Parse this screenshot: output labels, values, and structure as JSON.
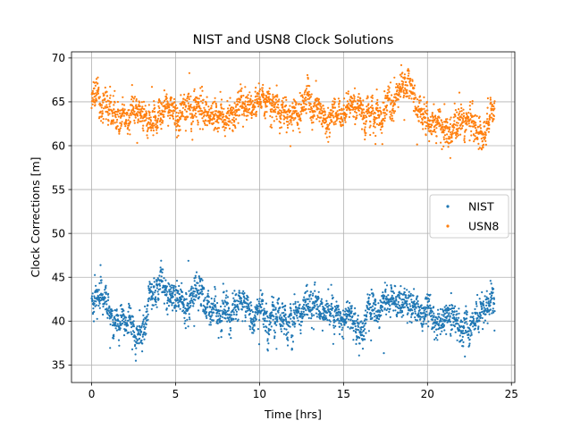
{
  "chart_data": {
    "type": "scatter",
    "title": "NIST and USN8 Clock Solutions",
    "xlabel": "Time [hrs]",
    "ylabel": "Clock Corrections [m]",
    "xlim": [
      -1.2,
      25.2
    ],
    "ylim": [
      33.0,
      70.7
    ],
    "xticks": [
      0,
      5,
      10,
      15,
      20,
      25
    ],
    "yticks": [
      35,
      40,
      45,
      50,
      55,
      60,
      65,
      70
    ],
    "grid": true,
    "legend_position": "center-right",
    "point_spacing_hours": 0.01,
    "series": [
      {
        "name": "NIST",
        "color": "#1f77b4",
        "anchors": [
          [
            0.0,
            43.0
          ],
          [
            0.3,
            43.3
          ],
          [
            0.6,
            43.0
          ],
          [
            0.9,
            41.8
          ],
          [
            1.2,
            40.6
          ],
          [
            1.6,
            40.2
          ],
          [
            2.0,
            40.4
          ],
          [
            2.4,
            40.0
          ],
          [
            2.8,
            39.2
          ],
          [
            3.2,
            40.0
          ],
          [
            3.6,
            42.5
          ],
          [
            4.0,
            44.0
          ],
          [
            4.5,
            43.0
          ],
          [
            5.0,
            42.0
          ],
          [
            5.5,
            41.8
          ],
          [
            6.0,
            43.0
          ],
          [
            6.4,
            43.3
          ],
          [
            6.8,
            42.0
          ],
          [
            7.2,
            41.0
          ],
          [
            7.6,
            40.6
          ],
          [
            8.0,
            40.8
          ],
          [
            8.5,
            41.2
          ],
          [
            9.0,
            41.6
          ],
          [
            9.5,
            41.8
          ],
          [
            10.0,
            41.6
          ],
          [
            10.5,
            40.8
          ],
          [
            11.0,
            40.2
          ],
          [
            11.5,
            40.0
          ],
          [
            12.0,
            40.2
          ],
          [
            12.5,
            40.8
          ],
          [
            13.0,
            41.2
          ],
          [
            13.5,
            42.0
          ],
          [
            14.0,
            41.5
          ],
          [
            14.5,
            40.5
          ],
          [
            15.0,
            40.5
          ],
          [
            15.5,
            41.0
          ],
          [
            16.0,
            39.0
          ],
          [
            16.5,
            40.5
          ],
          [
            17.0,
            40.8
          ],
          [
            17.5,
            41.5
          ],
          [
            18.0,
            42.3
          ],
          [
            18.5,
            43.0
          ],
          [
            19.0,
            41.5
          ],
          [
            19.5,
            41.0
          ],
          [
            20.0,
            40.8
          ],
          [
            20.5,
            40.2
          ],
          [
            21.0,
            39.8
          ],
          [
            21.5,
            40.2
          ],
          [
            22.0,
            40.0
          ],
          [
            22.5,
            40.0
          ],
          [
            23.0,
            40.6
          ],
          [
            23.5,
            42.0
          ],
          [
            24.0,
            43.2
          ]
        ]
      },
      {
        "name": "USN8",
        "color": "#ff7f0e",
        "anchors": [
          [
            0.0,
            64.5
          ],
          [
            0.3,
            65.5
          ],
          [
            0.6,
            65.2
          ],
          [
            0.9,
            64.8
          ],
          [
            1.2,
            63.8
          ],
          [
            1.6,
            63.3
          ],
          [
            2.0,
            63.8
          ],
          [
            2.5,
            64.2
          ],
          [
            3.0,
            63.5
          ],
          [
            3.5,
            63.6
          ],
          [
            4.0,
            63.6
          ],
          [
            4.5,
            64.0
          ],
          [
            5.0,
            63.8
          ],
          [
            5.5,
            64.0
          ],
          [
            6.0,
            64.3
          ],
          [
            6.5,
            64.6
          ],
          [
            7.0,
            63.7
          ],
          [
            7.5,
            63.3
          ],
          [
            8.0,
            63.5
          ],
          [
            8.5,
            63.5
          ],
          [
            9.0,
            63.8
          ],
          [
            9.5,
            64.5
          ],
          [
            10.0,
            65.8
          ],
          [
            10.5,
            65.0
          ],
          [
            11.0,
            64.2
          ],
          [
            11.5,
            63.8
          ],
          [
            12.0,
            63.8
          ],
          [
            12.5,
            64.5
          ],
          [
            13.0,
            64.5
          ],
          [
            13.5,
            63.8
          ],
          [
            14.0,
            63.6
          ],
          [
            14.5,
            63.5
          ],
          [
            15.0,
            63.5
          ],
          [
            15.5,
            63.8
          ],
          [
            16.0,
            64.0
          ],
          [
            16.5,
            63.8
          ],
          [
            17.0,
            63.0
          ],
          [
            17.5,
            64.2
          ],
          [
            18.0,
            65.0
          ],
          [
            18.5,
            66.2
          ],
          [
            19.0,
            65.8
          ],
          [
            19.5,
            64.5
          ],
          [
            20.0,
            63.5
          ],
          [
            20.5,
            62.5
          ],
          [
            21.0,
            61.8
          ],
          [
            21.5,
            62.3
          ],
          [
            22.0,
            62.5
          ],
          [
            22.5,
            62.8
          ],
          [
            23.0,
            61.5
          ],
          [
            23.3,
            61.0
          ],
          [
            23.6,
            63.3
          ],
          [
            24.0,
            64.5
          ]
        ]
      }
    ]
  }
}
